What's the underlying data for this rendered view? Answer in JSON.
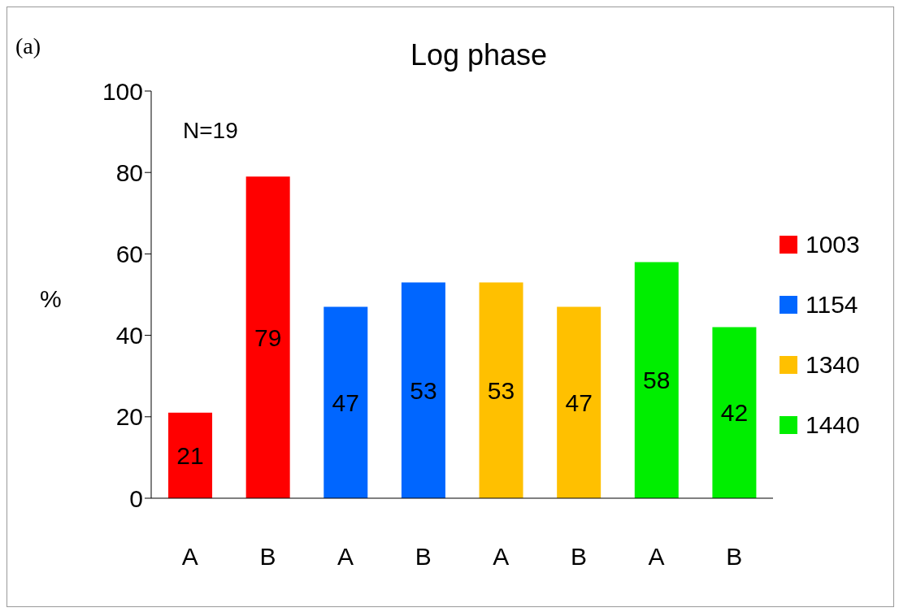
{
  "chart_data": {
    "type": "bar",
    "title": "Log phase",
    "ylabel": "%",
    "annotations": [
      "(a)",
      "N=19"
    ],
    "categories": [
      "A",
      "B",
      "A",
      "B",
      "A",
      "B",
      "A",
      "B"
    ],
    "series": [
      {
        "name": "1003",
        "color": "#ff0000",
        "values": [
          21,
          79,
          null,
          null,
          null,
          null,
          null,
          null
        ]
      },
      {
        "name": "1154",
        "color": "#0066ff",
        "values": [
          null,
          null,
          47,
          53,
          null,
          null,
          null,
          null
        ]
      },
      {
        "name": "1340",
        "color": "#ffc000",
        "values": [
          null,
          null,
          null,
          null,
          53,
          47,
          null,
          null
        ]
      },
      {
        "name": "1440",
        "color": "#00ee00",
        "values": [
          null,
          null,
          null,
          null,
          null,
          null,
          58,
          42
        ]
      }
    ],
    "stacked": true,
    "ylim": [
      0,
      100
    ],
    "yticks": [
      0,
      20,
      40,
      60,
      80,
      100
    ],
    "data_labels": true,
    "legend": "right",
    "grid": false
  }
}
